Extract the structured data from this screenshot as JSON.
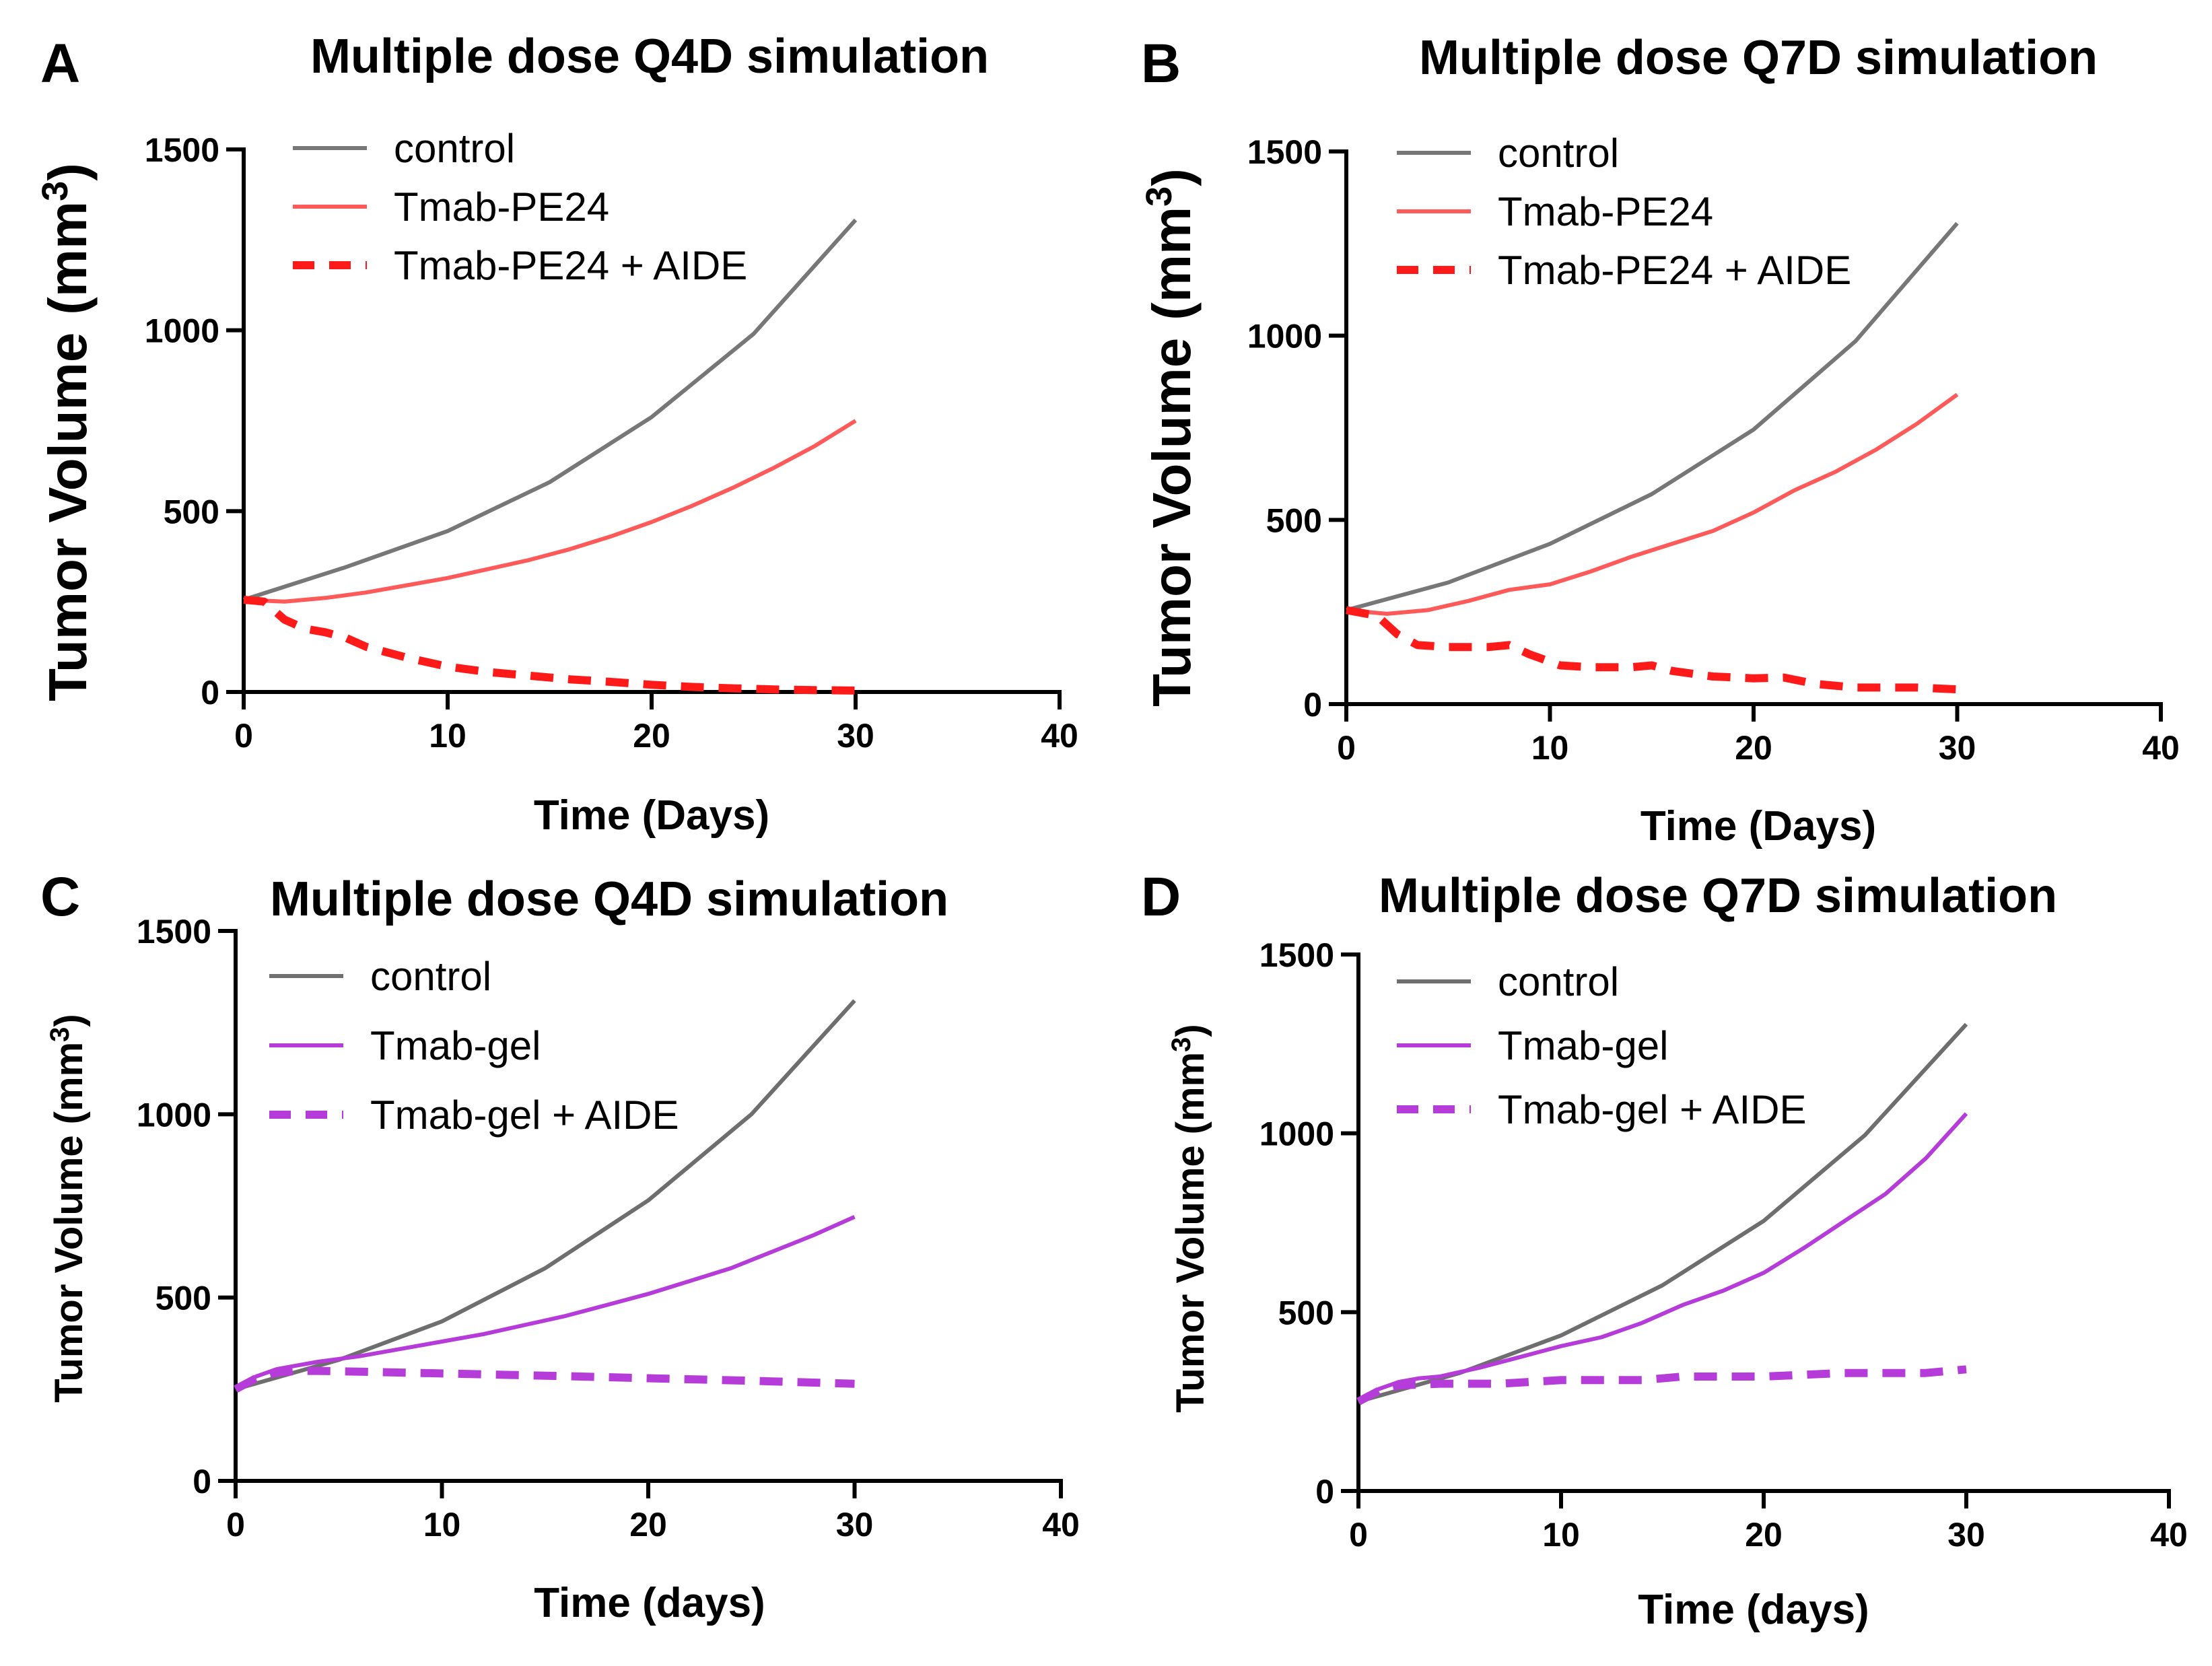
{
  "chart_data": [
    {
      "panel": "A",
      "type": "line",
      "title": "Multiple dose Q4D simulation",
      "xlabel": "Time (Days)",
      "ylabel": "Tumor Volume",
      "ylabel_unit": "(mm",
      "ylabel_sup": "3",
      "ylabel_close": ")",
      "xlim": [
        0,
        40
      ],
      "ylim": [
        0,
        1500
      ],
      "xticks": [
        0,
        10,
        20,
        30,
        40
      ],
      "yticks": [
        0,
        500,
        1000,
        1500
      ],
      "legend_position": "top-left",
      "series": [
        {
          "name": "control",
          "color": "#777777",
          "style": "solid",
          "x": [
            0,
            5,
            10,
            15,
            20,
            25,
            30
          ],
          "y": [
            255,
            345,
            445,
            580,
            760,
            990,
            1305
          ]
        },
        {
          "name": "Tmab-PE24",
          "color": "#ff5a5a",
          "style": "solid",
          "x": [
            0,
            2,
            4,
            6,
            8,
            10,
            12,
            14,
            16,
            18,
            20,
            22,
            24,
            26,
            28,
            30
          ],
          "y": [
            255,
            250,
            260,
            275,
            295,
            315,
            340,
            365,
            395,
            430,
            470,
            515,
            565,
            620,
            680,
            750
          ]
        },
        {
          "name": "Tmab-PE24 + AIDE",
          "color": "#ff1a1a",
          "style": "dashed",
          "x": [
            0,
            1,
            2,
            3,
            4,
            5,
            6,
            8,
            10,
            12,
            14,
            16,
            18,
            20,
            22,
            24,
            26,
            28,
            30
          ],
          "y": [
            255,
            250,
            200,
            175,
            165,
            150,
            125,
            95,
            70,
            55,
            45,
            35,
            28,
            20,
            14,
            10,
            7,
            5,
            4
          ]
        }
      ]
    },
    {
      "panel": "B",
      "type": "line",
      "title": "Multiple dose Q7D simulation",
      "xlabel": "Time (Days)",
      "ylabel": "Tumor Volume",
      "ylabel_unit": "(mm",
      "ylabel_sup": "3",
      "ylabel_close": ")",
      "xlim": [
        0,
        40
      ],
      "ylim": [
        0,
        1500
      ],
      "xticks": [
        0,
        10,
        20,
        30,
        40
      ],
      "yticks": [
        0,
        500,
        1000,
        1500
      ],
      "legend_position": "top-left",
      "series": [
        {
          "name": "control",
          "color": "#777777",
          "style": "solid",
          "x": [
            0,
            5,
            10,
            15,
            20,
            25,
            30
          ],
          "y": [
            255,
            330,
            435,
            570,
            745,
            985,
            1305
          ]
        },
        {
          "name": "Tmab-PE24",
          "color": "#ff5a5a",
          "style": "solid",
          "x": [
            0,
            2,
            4,
            6,
            8,
            10,
            12,
            14,
            16,
            18,
            20,
            22,
            24,
            26,
            28,
            30
          ],
          "y": [
            255,
            245,
            255,
            280,
            310,
            325,
            360,
            400,
            435,
            470,
            520,
            580,
            630,
            690,
            760,
            840
          ]
        },
        {
          "name": "Tmab-PE24 + AIDE",
          "color": "#ff1a1a",
          "style": "dashed",
          "x": [
            0,
            1.5,
            2.5,
            3.5,
            5,
            7,
            8,
            9,
            10.5,
            12,
            14,
            15,
            16,
            18,
            20,
            21.5,
            23,
            25,
            28,
            30
          ],
          "y": [
            255,
            240,
            190,
            160,
            155,
            155,
            160,
            135,
            105,
            100,
            100,
            105,
            90,
            75,
            70,
            72,
            55,
            45,
            45,
            40
          ]
        }
      ]
    },
    {
      "panel": "C",
      "type": "line",
      "title": "Multiple dose Q4D simulation",
      "xlabel": "Time (days)",
      "ylabel": "Tumor Volume",
      "ylabel_unit": "(mm",
      "ylabel_sup": "3",
      "ylabel_close": ")",
      "xlim": [
        0,
        40
      ],
      "ylim": [
        0,
        1500
      ],
      "xticks": [
        0,
        10,
        20,
        30,
        40
      ],
      "yticks": [
        0,
        500,
        1000,
        1500
      ],
      "legend_position": "top-left",
      "series": [
        {
          "name": "control",
          "color": "#6e6e6e",
          "style": "solid",
          "x": [
            0,
            5,
            10,
            15,
            20,
            25,
            30
          ],
          "y": [
            250,
            330,
            435,
            580,
            765,
            1000,
            1310
          ]
        },
        {
          "name": "Tmab-gel",
          "color": "#b53cd9",
          "style": "solid",
          "x": [
            0,
            1,
            2,
            3,
            4,
            6,
            8,
            10,
            12,
            14,
            16,
            18,
            20,
            22,
            24,
            26,
            28,
            30
          ],
          "y": [
            250,
            285,
            305,
            315,
            325,
            340,
            360,
            380,
            400,
            425,
            450,
            480,
            510,
            545,
            580,
            625,
            670,
            720
          ]
        },
        {
          "name": "Tmab-gel + AIDE",
          "color": "#b53cd9",
          "style": "dashed",
          "x": [
            0,
            1,
            2,
            3,
            4,
            6,
            10,
            15,
            20,
            25,
            30
          ],
          "y": [
            250,
            280,
            295,
            300,
            300,
            298,
            293,
            287,
            280,
            273,
            265
          ]
        }
      ]
    },
    {
      "panel": "D",
      "type": "line",
      "title": "Multiple dose Q7D simulation",
      "xlabel": "Time (days)",
      "ylabel": "Tumor Volume",
      "ylabel_unit": "(mm",
      "ylabel_sup": "3",
      "ylabel_close": ")",
      "xlim": [
        0,
        40
      ],
      "ylim": [
        0,
        1500
      ],
      "xticks": [
        0,
        10,
        20,
        30,
        40
      ],
      "yticks": [
        0,
        500,
        1000,
        1500
      ],
      "legend_position": "top-left",
      "series": [
        {
          "name": "control",
          "color": "#6e6e6e",
          "style": "solid",
          "x": [
            0,
            5,
            10,
            15,
            20,
            25,
            30
          ],
          "y": [
            250,
            330,
            435,
            575,
            755,
            995,
            1305
          ]
        },
        {
          "name": "Tmab-gel",
          "color": "#b53cd9",
          "style": "solid",
          "x": [
            0,
            1,
            2,
            3,
            4,
            6,
            8,
            10,
            12,
            14,
            16,
            18,
            20,
            22,
            24,
            26,
            28,
            30
          ],
          "y": [
            250,
            285,
            305,
            315,
            320,
            345,
            375,
            405,
            430,
            470,
            520,
            560,
            610,
            680,
            755,
            830,
            930,
            1055
          ]
        },
        {
          "name": "Tmab-gel + AIDE",
          "color": "#b53cd9",
          "style": "dashed",
          "x": [
            0,
            1,
            2,
            4,
            7,
            10,
            14,
            16,
            20,
            22,
            24,
            28,
            30
          ],
          "y": [
            250,
            280,
            295,
            300,
            300,
            310,
            310,
            320,
            320,
            325,
            330,
            330,
            340
          ]
        }
      ]
    }
  ]
}
